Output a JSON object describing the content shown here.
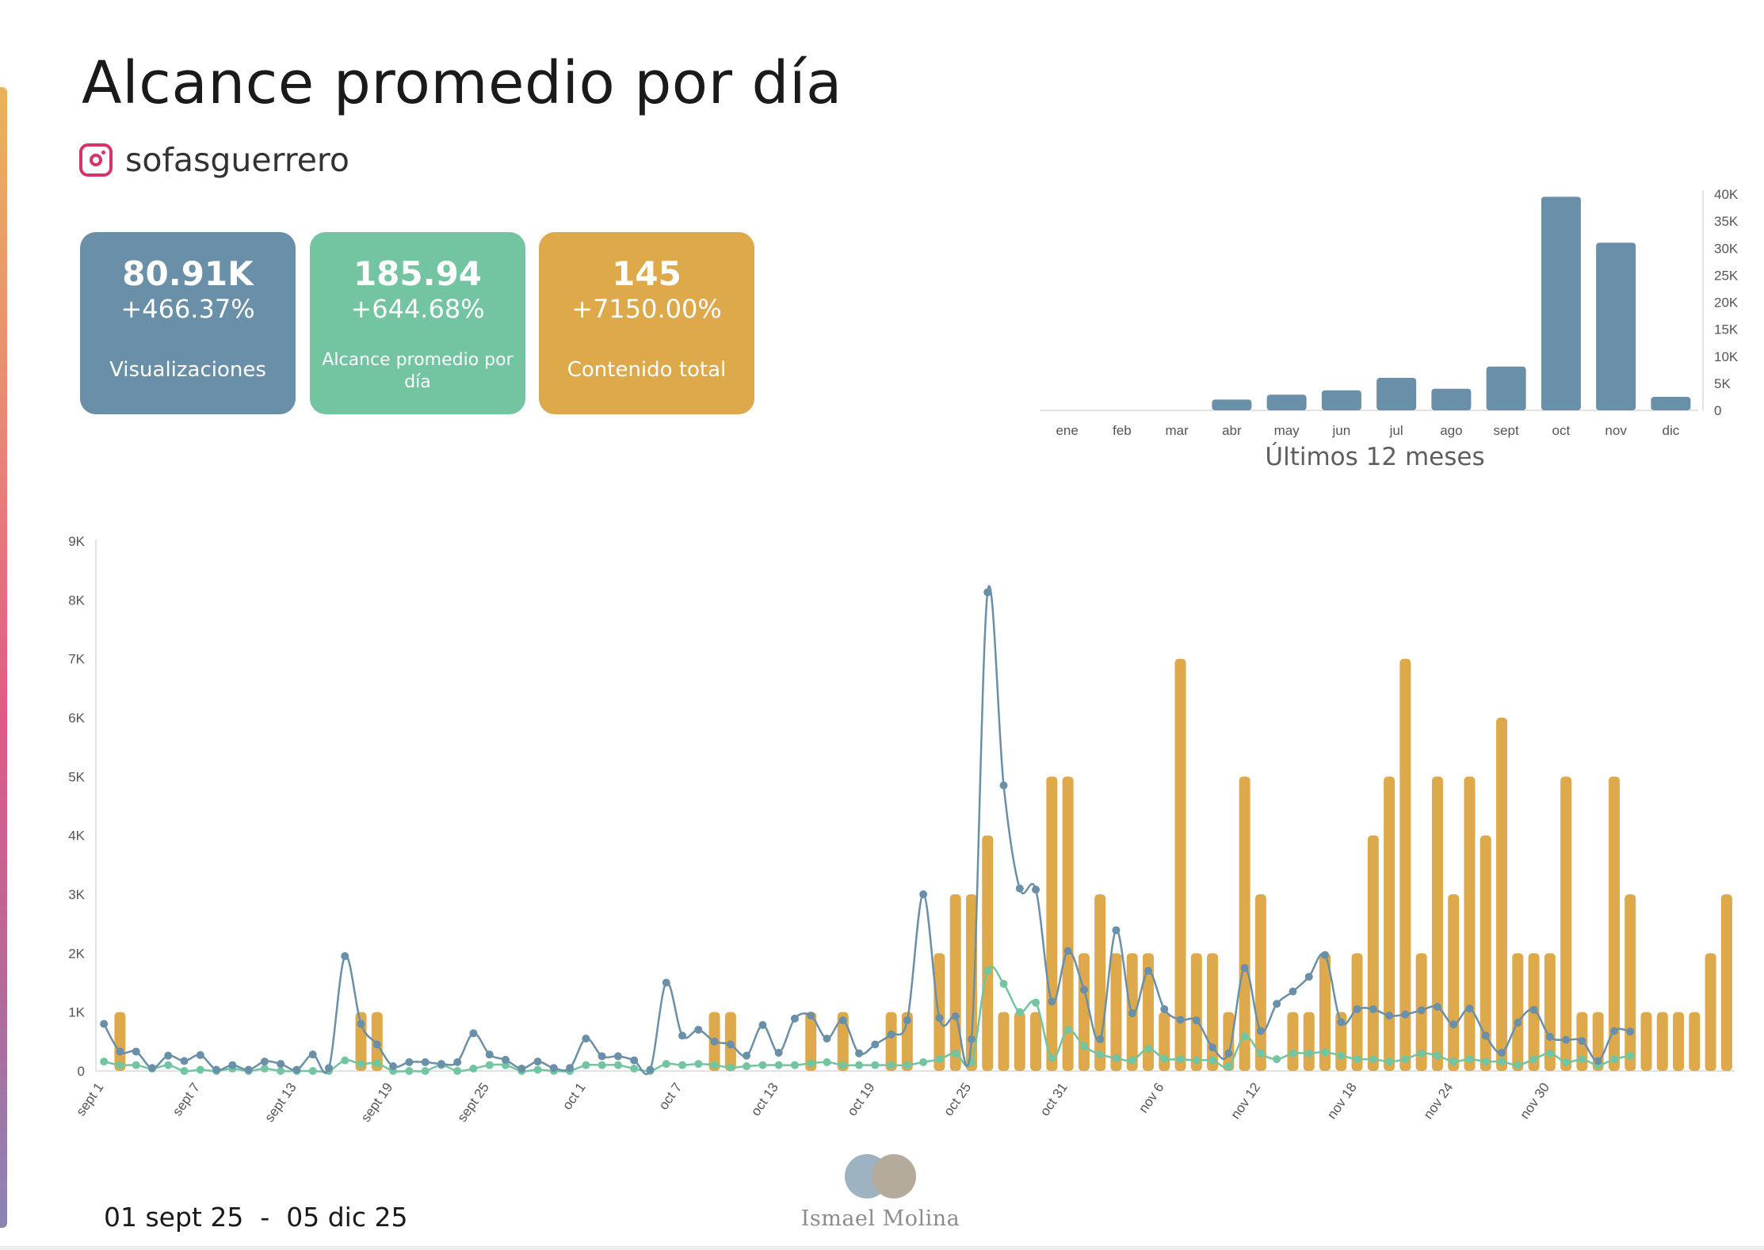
{
  "title": "Alcance promedio por día",
  "account": {
    "platform_icon": "instagram-icon",
    "handle": "sofasguerrero"
  },
  "kpis": [
    {
      "value": "80.91K",
      "change": "+466.37%",
      "label": "Visualizaciones",
      "color": "#6a8fa8"
    },
    {
      "value": "185.94",
      "change": "+644.68%",
      "label": "Alcance promedio por día",
      "color": "#72c5a0"
    },
    {
      "value": "145",
      "change": "+7150.00%",
      "label": "Contenido total",
      "color": "#dda94b"
    }
  ],
  "footer": {
    "date_from": "01 sept 25",
    "separator": "-",
    "date_to": "05 dic 25",
    "logo_text": "Ismael Molina"
  },
  "colors": {
    "blue": "#6a8fa8",
    "green": "#72c5a0",
    "orange": "#dda94b"
  },
  "chart_data": [
    {
      "type": "bar",
      "caption": "Últimos 12 meses",
      "categories": [
        "ene",
        "feb",
        "mar",
        "abr",
        "may",
        "jun",
        "jul",
        "ago",
        "sept",
        "oct",
        "nov",
        "dic"
      ],
      "values": [
        0,
        0,
        0,
        2000,
        2900,
        3700,
        6000,
        4000,
        8100,
        39500,
        31000,
        2500
      ],
      "ylim": [
        0,
        40000
      ],
      "yticks": [
        "0",
        "5K",
        "10K",
        "15K",
        "20K",
        "25K",
        "30K",
        "35K",
        "40K"
      ],
      "y_axis_position": "right",
      "grid": false
    },
    {
      "type": "bar",
      "title": "",
      "x_tick_labels": [
        "sept 1",
        "sept 7",
        "sept 13",
        "sept 19",
        "sept 25",
        "oct 1",
        "oct 7",
        "oct 13",
        "oct 19",
        "oct 25",
        "oct 31",
        "nov 6",
        "nov 12",
        "nov 18",
        "nov 24",
        "nov 30"
      ],
      "ylim": [
        0,
        9000
      ],
      "yticks": [
        "0",
        "1K",
        "2K",
        "3K",
        "4K",
        "5K",
        "6K",
        "7K",
        "8K",
        "9K"
      ],
      "grid": false,
      "series": [
        {
          "type": "bar",
          "values": [
            0,
            1000,
            0,
            0,
            0,
            0,
            0,
            0,
            0,
            0,
            0,
            0,
            0,
            0,
            0,
            0,
            1000,
            1000,
            0,
            0,
            0,
            0,
            0,
            0,
            0,
            0,
            0,
            0,
            0,
            0,
            0,
            0,
            0,
            0,
            0,
            0,
            0,
            0,
            1000,
            1000,
            0,
            0,
            0,
            0,
            1000,
            0,
            1000,
            0,
            0,
            1000,
            1000,
            0,
            2000,
            3000,
            3000,
            4000,
            1000,
            1000,
            1000,
            5000,
            5000,
            2000,
            3000,
            2000,
            2000,
            2000,
            1000,
            7000,
            2000,
            2000,
            1000,
            5000,
            3000,
            0,
            1000,
            1000,
            2000,
            1000,
            2000,
            4000,
            5000,
            7000,
            2000,
            5000,
            3000,
            5000,
            4000,
            6000,
            2000,
            2000,
            2000,
            5000,
            1000,
            1000,
            5000,
            3000,
            1000,
            1000,
            1000,
            1000,
            2000,
            3000
          ]
        },
        {
          "type": "line",
          "values": [
            800,
            330,
            330,
            50,
            260,
            170,
            270,
            20,
            100,
            20,
            160,
            120,
            20,
            280,
            50,
            1950,
            800,
            450,
            80,
            150,
            150,
            120,
            150,
            640,
            280,
            190,
            40,
            160,
            50,
            50,
            550,
            250,
            250,
            180,
            20,
            1500,
            600,
            700,
            500,
            450,
            260,
            780,
            310,
            890,
            940,
            550,
            860,
            300,
            450,
            620,
            860,
            3000,
            900,
            930,
            540,
            8130,
            4850,
            3100,
            3080,
            1180,
            2040,
            1380,
            540,
            2390,
            980,
            1700,
            1050,
            870,
            860,
            400,
            300,
            1750,
            680,
            1140,
            1350,
            1600,
            1970,
            830,
            1050,
            1050,
            940,
            960,
            1030,
            1090,
            790,
            1060,
            600,
            310,
            820,
            1040,
            580,
            530,
            510,
            170,
            680,
            670
          ]
        },
        {
          "type": "line",
          "values": [
            160,
            100,
            100,
            40,
            100,
            0,
            20,
            0,
            40,
            0,
            40,
            0,
            0,
            0,
            0,
            180,
            120,
            130,
            0,
            0,
            0,
            100,
            0,
            40,
            100,
            100,
            0,
            20,
            0,
            0,
            100,
            100,
            100,
            40,
            0,
            120,
            100,
            120,
            100,
            60,
            80,
            100,
            100,
            100,
            130,
            150,
            100,
            100,
            100,
            100,
            100,
            150,
            200,
            300,
            150,
            1700,
            1480,
            1000,
            1160,
            220,
            700,
            420,
            280,
            220,
            180,
            380,
            210,
            200,
            180,
            180,
            80,
            590,
            300,
            200,
            300,
            300,
            320,
            260,
            200,
            200,
            160,
            200,
            300,
            260,
            160,
            200,
            160,
            160,
            100,
            200,
            300,
            150,
            200,
            100,
            200,
            260
          ]
        }
      ]
    }
  ]
}
